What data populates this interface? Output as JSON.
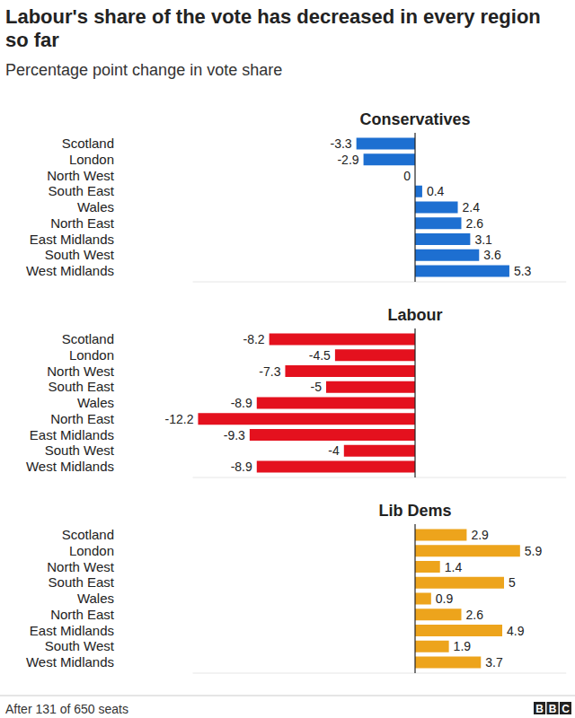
{
  "header": {
    "title": "Labour's share of the vote has decreased in every region so far",
    "subtitle": "Percentage point change in vote share"
  },
  "chart_data": [
    {
      "type": "bar",
      "title": "Conservatives",
      "orientation": "horizontal",
      "categories": [
        "Scotland",
        "London",
        "North West",
        "South East",
        "Wales",
        "North East",
        "East Midlands",
        "South West",
        "West Midlands"
      ],
      "values": [
        -3.3,
        -2.9,
        0,
        0.4,
        2.4,
        2.6,
        3.1,
        3.6,
        5.3
      ],
      "color": "#1d6fd1",
      "data_labels": true,
      "tick_labels": "y",
      "xlim": [
        -12.5,
        8.5
      ],
      "xticks": [
        0
      ]
    },
    {
      "type": "bar",
      "title": "Labour",
      "orientation": "horizontal",
      "categories": [
        "Scotland",
        "London",
        "North West",
        "South East",
        "Wales",
        "North East",
        "East Midlands",
        "South West",
        "West Midlands"
      ],
      "values": [
        -8.2,
        -4.5,
        -7.3,
        -5,
        -8.9,
        -12.2,
        -9.3,
        -4,
        -8.9
      ],
      "color": "#e4111e",
      "data_labels": true,
      "tick_labels": "y",
      "xlim": [
        -12.5,
        8.5
      ],
      "xticks": [
        0
      ]
    },
    {
      "type": "bar",
      "title": "Lib Dems",
      "orientation": "horizontal",
      "categories": [
        "Scotland",
        "London",
        "North West",
        "South East",
        "Wales",
        "North East",
        "East Midlands",
        "South West",
        "West Midlands"
      ],
      "values": [
        2.9,
        5.9,
        1.4,
        5,
        0.9,
        2.6,
        4.9,
        1.9,
        3.7
      ],
      "color": "#eda41c",
      "data_labels": true,
      "tick_labels": "y",
      "xlim": [
        -12.5,
        8.5
      ],
      "xticks": [
        0
      ]
    }
  ],
  "footer": {
    "note": "After 131 of 650 seats",
    "source": "BBC"
  }
}
